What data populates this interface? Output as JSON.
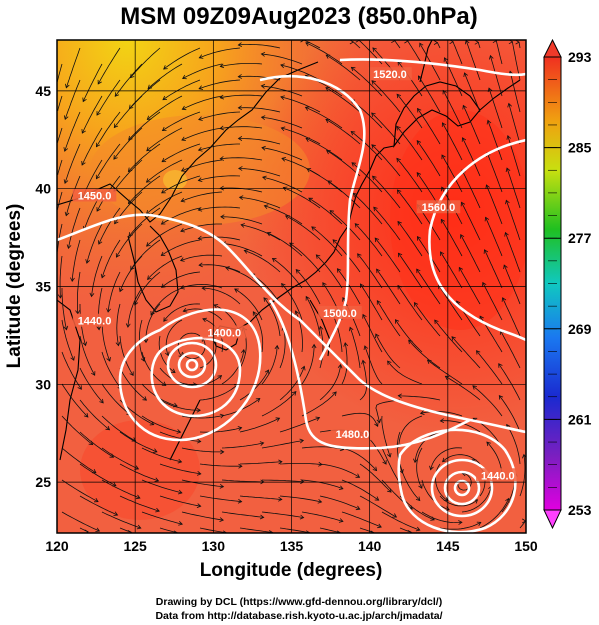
{
  "title": "MSM 09Z09Aug2023 (850.0hPa)",
  "axes": {
    "xlabel": "Longitude (degrees)",
    "ylabel": "Latitude  (degrees)",
    "xticks": [
      "120",
      "125",
      "130",
      "135",
      "140",
      "145",
      "150"
    ],
    "yticks": [
      "25",
      "30",
      "35",
      "40",
      "45"
    ],
    "xrange": [
      120,
      150
    ],
    "yrange": [
      22.4,
      47.6
    ]
  },
  "colorbar": {
    "ticks": [
      "253",
      "261",
      "269",
      "277",
      "285",
      "293"
    ],
    "range": [
      253,
      293
    ]
  },
  "contour_labels": [
    {
      "text": "1520.0",
      "lon": 141.3,
      "lat": 45.8
    },
    {
      "text": "1560.0",
      "lon": 144.4,
      "lat": 39.0
    },
    {
      "text": "1450.0",
      "lon": 122.4,
      "lat": 39.6
    },
    {
      "text": "1440.0",
      "lon": 122.4,
      "lat": 33.2
    },
    {
      "text": "1400.0",
      "lon": 130.7,
      "lat": 32.6
    },
    {
      "text": "1500.0",
      "lon": 138.1,
      "lat": 33.6
    },
    {
      "text": "1480.0",
      "lon": 138.9,
      "lat": 27.4
    },
    {
      "text": "1440.0",
      "lon": 148.2,
      "lat": 25.3
    }
  ],
  "centers": [
    {
      "name": "typhoon-west",
      "lon": 128.6,
      "lat": 31.9
    },
    {
      "name": "typhoon-east",
      "lon": 146.0,
      "lat": 24.9
    }
  ],
  "credits": {
    "line1": "Drawing by DCL (https://www.gfd-dennou.org/library/dcl/)",
    "line2": "Data from http://database.rish.kyoto-u.ac.jp/arch/jmadata/"
  },
  "colors": {
    "warm_base": "#f05a38",
    "hot": "#ff3a1c",
    "cool_north": "#f7a21c",
    "coldest_north": "#f0d010",
    "contour": "#ffffff",
    "coast": "#000000"
  }
}
